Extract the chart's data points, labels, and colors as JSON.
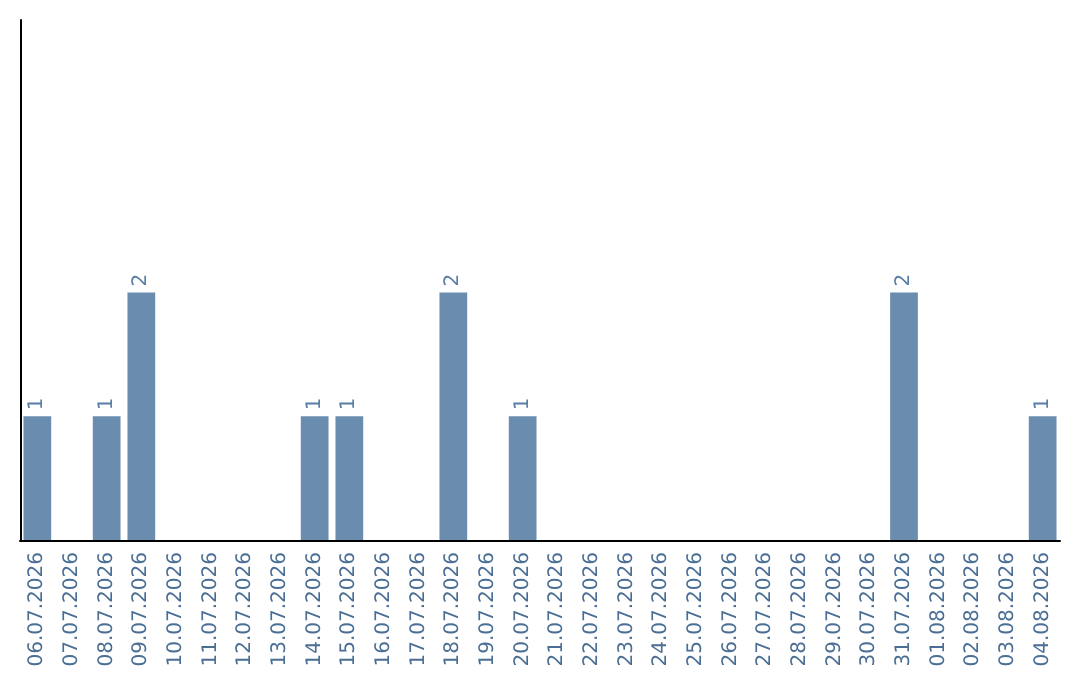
{
  "chart_data": {
    "type": "bar",
    "categories": [
      "06.07.2026",
      "07.07.2026",
      "08.07.2026",
      "09.07.2026",
      "10.07.2026",
      "11.07.2026",
      "12.07.2026",
      "13.07.2026",
      "14.07.2026",
      "15.07.2026",
      "16.07.2026",
      "17.07.2026",
      "18.07.2026",
      "19.07.2026",
      "20.07.2026",
      "21.07.2026",
      "22.07.2026",
      "23.07.2026",
      "24.07.2026",
      "25.07.2026",
      "26.07.2026",
      "27.07.2026",
      "28.07.2026",
      "29.07.2026",
      "30.07.2026",
      "31.07.2026",
      "01.08.2026",
      "02.08.2026",
      "03.08.2026",
      "04.08.2026"
    ],
    "values": [
      1,
      0,
      1,
      2,
      0,
      0,
      0,
      0,
      1,
      1,
      0,
      0,
      2,
      0,
      1,
      0,
      0,
      0,
      0,
      0,
      0,
      0,
      0,
      0,
      0,
      2,
      0,
      0,
      0,
      1
    ],
    "value_labels": [
      "1",
      null,
      "1",
      "2",
      null,
      null,
      null,
      null,
      "1",
      "1",
      null,
      null,
      "2",
      null,
      "1",
      null,
      null,
      null,
      null,
      null,
      null,
      null,
      null,
      null,
      null,
      "2",
      null,
      null,
      null,
      "1"
    ],
    "color": "#6a8caf",
    "grid": false,
    "tick_labels": "x"
  }
}
